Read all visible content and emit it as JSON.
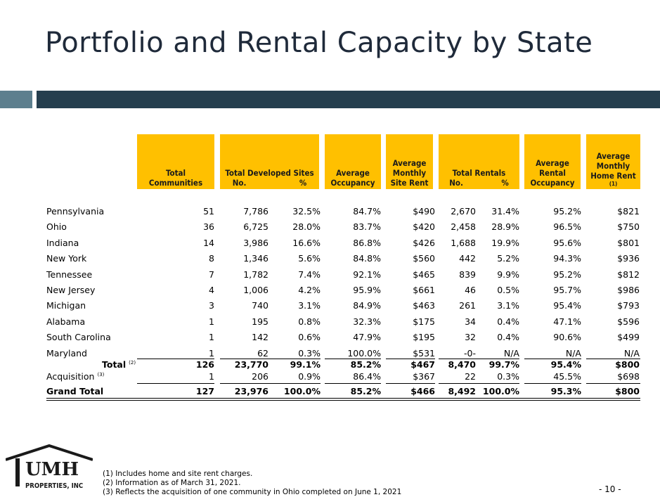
{
  "title": "Portfolio and Rental Capacity by State",
  "headers": {
    "total_communities": [
      "Total",
      "Communities"
    ],
    "developed_sites": "Total Developed Sites",
    "developed_no": "No.",
    "developed_pct": "%",
    "avg_occupancy": [
      "Average",
      "Occupancy"
    ],
    "avg_site_rent": [
      "Average",
      "Monthly",
      "Site Rent"
    ],
    "total_rentals": "Total Rentals",
    "rentals_no": "No.",
    "rentals_pct": "%",
    "avg_rental_occupancy": [
      "Average",
      "Rental",
      "Occupancy"
    ],
    "avg_home_rent": [
      "Average",
      "Monthly",
      "Home Rent"
    ],
    "avg_home_rent_note": "(1)"
  },
  "rows": [
    {
      "state": "Pennsylvania",
      "communities": "51",
      "sites": "7,786",
      "sites_pct": "32.5%",
      "occupancy": "84.7%",
      "site_rent": "$490",
      "rentals": "2,670",
      "rentals_pct": "31.4%",
      "rental_occ": "95.2%",
      "home_rent": "$821"
    },
    {
      "state": "Ohio",
      "communities": "36",
      "sites": "6,725",
      "sites_pct": "28.0%",
      "occupancy": "83.7%",
      "site_rent": "$420",
      "rentals": "2,458",
      "rentals_pct": "28.9%",
      "rental_occ": "96.5%",
      "home_rent": "$750"
    },
    {
      "state": "Indiana",
      "communities": "14",
      "sites": "3,986",
      "sites_pct": "16.6%",
      "occupancy": "86.8%",
      "site_rent": "$426",
      "rentals": "1,688",
      "rentals_pct": "19.9%",
      "rental_occ": "95.6%",
      "home_rent": "$801"
    },
    {
      "state": "New York",
      "communities": "8",
      "sites": "1,346",
      "sites_pct": "5.6%",
      "occupancy": "84.8%",
      "site_rent": "$560",
      "rentals": "442",
      "rentals_pct": "5.2%",
      "rental_occ": "94.3%",
      "home_rent": "$936"
    },
    {
      "state": "Tennessee",
      "communities": "7",
      "sites": "1,782",
      "sites_pct": "7.4%",
      "occupancy": "92.1%",
      "site_rent": "$465",
      "rentals": "839",
      "rentals_pct": "9.9%",
      "rental_occ": "95.2%",
      "home_rent": "$812"
    },
    {
      "state": "New Jersey",
      "communities": "4",
      "sites": "1,006",
      "sites_pct": "4.2%",
      "occupancy": "95.9%",
      "site_rent": "$661",
      "rentals": "46",
      "rentals_pct": "0.5%",
      "rental_occ": "95.7%",
      "home_rent": "$986"
    },
    {
      "state": "Michigan",
      "communities": "3",
      "sites": "740",
      "sites_pct": "3.1%",
      "occupancy": "84.9%",
      "site_rent": "$463",
      "rentals": "261",
      "rentals_pct": "3.1%",
      "rental_occ": "95.4%",
      "home_rent": "$793"
    },
    {
      "state": "Alabama",
      "communities": "1",
      "sites": "195",
      "sites_pct": "0.8%",
      "occupancy": "32.3%",
      "site_rent": "$175",
      "rentals": "34",
      "rentals_pct": "0.4%",
      "rental_occ": "47.1%",
      "home_rent": "$596"
    },
    {
      "state": "South Carolina",
      "communities": "1",
      "sites": "142",
      "sites_pct": "0.6%",
      "occupancy": "47.9%",
      "site_rent": "$195",
      "rentals": "32",
      "rentals_pct": "0.4%",
      "rental_occ": "90.6%",
      "home_rent": "$499"
    },
    {
      "state": "Maryland",
      "communities": "1",
      "sites": "62",
      "sites_pct": "0.3%",
      "occupancy": "100.0%",
      "site_rent": "$531",
      "rentals": "-0-",
      "rentals_pct": "N/A",
      "rental_occ": "N/A",
      "home_rent": "N/A"
    }
  ],
  "total": {
    "label": "Total",
    "note": "(2)",
    "communities": "126",
    "sites": "23,770",
    "sites_pct": "99.1%",
    "occupancy": "85.2%",
    "site_rent": "$467",
    "rentals": "8,470",
    "rentals_pct": "99.7%",
    "rental_occ": "95.4%",
    "home_rent": "$800"
  },
  "acquisition": {
    "label": "Acquisition",
    "note": "(3)",
    "communities": "1",
    "sites": "206",
    "sites_pct": "0.9%",
    "occupancy": "86.4%",
    "site_rent": "$367",
    "rentals": "22",
    "rentals_pct": "0.3%",
    "rental_occ": "45.5%",
    "home_rent": "$698"
  },
  "grand_total": {
    "label": "Grand Total",
    "communities": "127",
    "sites": "23,976",
    "sites_pct": "100.0%",
    "occupancy": "85.2%",
    "site_rent": "$466",
    "rentals": "8,492",
    "rentals_pct": "100.0%",
    "rental_occ": "95.3%",
    "home_rent": "$800"
  },
  "footnotes": [
    "(1)  Includes home and site rent charges.",
    "(2)  Information as of March 31, 2021.",
    "(3)  Reflects the acquisition of one community in Ohio completed on June 1, 2021"
  ],
  "page_number": "- 10 -",
  "logo": {
    "text": "UMH",
    "subtext": "PROPERTIES, INC"
  },
  "colors": {
    "header_fill": "#ffc000",
    "bar_dark": "#253e4e",
    "bar_light": "#5d7f8e"
  }
}
